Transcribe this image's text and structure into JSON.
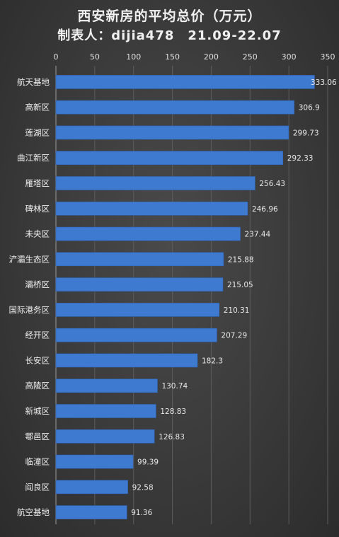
{
  "header": {
    "title": "西安新房的平均总价（万元）",
    "subtitle": "制表人：dijia478　21.09-22.07"
  },
  "chart_data": {
    "type": "bar",
    "orientation": "horizontal",
    "title": "西安新房的平均总价（万元）",
    "subtitle": "制表人：dijia478　21.09-22.07",
    "xlabel": "",
    "ylabel": "",
    "xlim": [
      0,
      350
    ],
    "xticks": [
      0,
      50,
      100,
      150,
      200,
      250,
      300,
      350
    ],
    "axis_position": "top",
    "grid": true,
    "bar_color": "#3f7ad1",
    "categories": [
      "航天基地",
      "高新区",
      "莲湖区",
      "曲江新区",
      "雁塔区",
      "碑林区",
      "未央区",
      "浐灞生态区",
      "灞桥区",
      "国际港务区",
      "经开区",
      "长安区",
      "高陵区",
      "新城区",
      "鄠邑区",
      "临潼区",
      "阎良区",
      "航空基地"
    ],
    "values": [
      333.06,
      306.9,
      299.73,
      292.33,
      256.43,
      246.96,
      237.44,
      215.88,
      215.05,
      210.31,
      207.29,
      182.3,
      130.74,
      128.83,
      126.83,
      99.39,
      92.58,
      91.36
    ],
    "value_labels": [
      "333.06",
      "306.9",
      "299.73",
      "292.33",
      "256.43",
      "246.96",
      "237.44",
      "215.88",
      "215.05",
      "210.31",
      "207.29",
      "182.3",
      "130.74",
      "128.83",
      "126.83",
      "99.39",
      "92.58",
      "91.36"
    ]
  }
}
